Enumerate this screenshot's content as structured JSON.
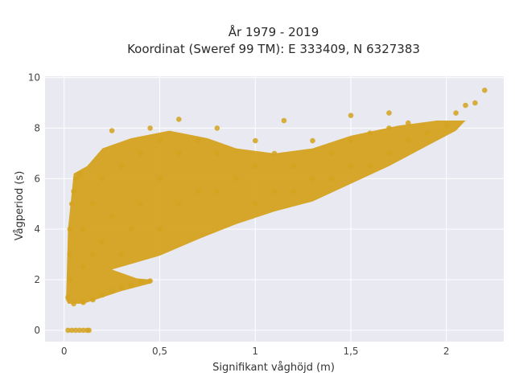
{
  "chart_data": {
    "type": "scatter",
    "title_line1": "År 1979 - 2019",
    "title_line2": "Koordinat (Sweref 99 TM): E 333409, N 6327383",
    "xlabel": "Signifikant våghöjd (m)",
    "ylabel": "Vågperiod (s)",
    "xlim": [
      -0.1,
      2.3
    ],
    "ylim": [
      -0.45,
      10.05
    ],
    "x_ticks": [
      {
        "value": 0,
        "label": "0"
      },
      {
        "value": 0.5,
        "label": "0,5"
      },
      {
        "value": 1,
        "label": "1"
      },
      {
        "value": 1.5,
        "label": "1,5"
      },
      {
        "value": 2,
        "label": "2"
      }
    ],
    "y_ticks": [
      {
        "value": 0,
        "label": "0"
      },
      {
        "value": 2,
        "label": "2"
      },
      {
        "value": 4,
        "label": "4"
      },
      {
        "value": 6,
        "label": "6"
      },
      {
        "value": 8,
        "label": "8"
      },
      {
        "value": 10,
        "label": "10"
      }
    ],
    "grid": true,
    "marker_color": "#d4a21f",
    "plot_background": "#e9e9f1",
    "grid_color": "#ffffff",
    "series": [
      {
        "points": [
          [
            0.02,
            0.0
          ],
          [
            0.04,
            0.0
          ],
          [
            0.06,
            0.0
          ],
          [
            0.08,
            0.0
          ],
          [
            0.1,
            0.0
          ],
          [
            0.12,
            0.0
          ],
          [
            0.13,
            0.0
          ],
          [
            0.02,
            1.3
          ],
          [
            0.03,
            2.0
          ],
          [
            0.03,
            3.0
          ],
          [
            0.03,
            4.0
          ],
          [
            0.04,
            5.0
          ],
          [
            0.05,
            5.5
          ],
          [
            0.06,
            6.0
          ],
          [
            0.08,
            6.2
          ],
          [
            0.05,
            1.05
          ],
          [
            0.1,
            1.1
          ],
          [
            0.15,
            1.2
          ],
          [
            0.2,
            1.4
          ],
          [
            0.25,
            1.55
          ],
          [
            0.3,
            1.7
          ],
          [
            0.35,
            1.8
          ],
          [
            0.4,
            1.9
          ],
          [
            0.45,
            1.95
          ],
          [
            0.1,
            2.5
          ],
          [
            0.1,
            4.0
          ],
          [
            0.15,
            3.0
          ],
          [
            0.15,
            5.0
          ],
          [
            0.2,
            3.5
          ],
          [
            0.2,
            6.0
          ],
          [
            0.25,
            4.5
          ],
          [
            0.3,
            3.0
          ],
          [
            0.3,
            6.5
          ],
          [
            0.35,
            4.0
          ],
          [
            0.4,
            5.0
          ],
          [
            0.4,
            7.0
          ],
          [
            0.5,
            4.0
          ],
          [
            0.5,
            6.0
          ],
          [
            0.5,
            7.5
          ],
          [
            0.6,
            5.0
          ],
          [
            0.6,
            7.0
          ],
          [
            0.7,
            5.5
          ],
          [
            0.7,
            7.5
          ],
          [
            0.8,
            5.5
          ],
          [
            0.8,
            7.0
          ],
          [
            0.9,
            6.0
          ],
          [
            1.0,
            5.0
          ],
          [
            1.0,
            6.5
          ],
          [
            1.0,
            7.5
          ],
          [
            1.1,
            5.5
          ],
          [
            1.1,
            7.0
          ],
          [
            1.2,
            5.5
          ],
          [
            1.2,
            6.5
          ],
          [
            1.3,
            6.0
          ],
          [
            1.3,
            7.5
          ],
          [
            1.4,
            6.0
          ],
          [
            1.4,
            7.0
          ],
          [
            1.5,
            6.5
          ],
          [
            1.5,
            7.5
          ],
          [
            1.6,
            6.5
          ],
          [
            1.6,
            7.8
          ],
          [
            1.7,
            7.0
          ],
          [
            1.7,
            8.0
          ],
          [
            1.8,
            7.5
          ],
          [
            1.8,
            8.2
          ],
          [
            1.9,
            7.8
          ],
          [
            2.0,
            8.1
          ],
          [
            2.05,
            8.6
          ],
          [
            2.1,
            8.9
          ],
          [
            2.15,
            9.0
          ],
          [
            2.2,
            9.5
          ],
          [
            0.25,
            7.9
          ],
          [
            0.45,
            8.0
          ],
          [
            0.6,
            8.35
          ],
          [
            0.8,
            8.0
          ],
          [
            1.15,
            8.3
          ],
          [
            1.5,
            8.5
          ],
          [
            1.7,
            8.6
          ]
        ]
      }
    ]
  }
}
